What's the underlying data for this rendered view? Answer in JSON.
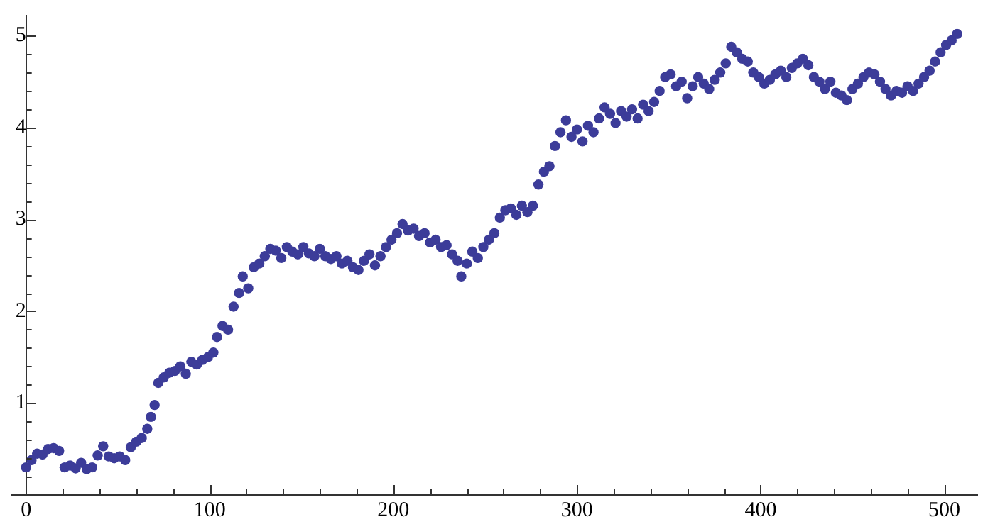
{
  "chart_data": {
    "type": "scatter",
    "marker": "circle",
    "grid": false,
    "legend": false,
    "xlim": [
      -8,
      518
    ],
    "ylim": [
      0,
      5.22
    ],
    "xticks": [
      0,
      {
        "value": 20,
        "label": null
      },
      {
        "value": 40,
        "label": null
      },
      {
        "value": 60,
        "label": null
      },
      {
        "value": 80,
        "label": null
      },
      100,
      {
        "value": 120,
        "label": null
      },
      {
        "value": 140,
        "label": null
      },
      {
        "value": 160,
        "label": null
      },
      {
        "value": 180,
        "label": null
      },
      200,
      {
        "value": 220,
        "label": null
      },
      {
        "value": 240,
        "label": null
      },
      {
        "value": 260,
        "label": null
      },
      {
        "value": 280,
        "label": null
      },
      300,
      {
        "value": 320,
        "label": null
      },
      {
        "value": 340,
        "label": null
      },
      {
        "value": 360,
        "label": null
      },
      {
        "value": 380,
        "label": null
      },
      400,
      {
        "value": 420,
        "label": null
      },
      {
        "value": 440,
        "label": null
      },
      {
        "value": 460,
        "label": null
      },
      {
        "value": 480,
        "label": null
      },
      500
    ],
    "yticks": [
      {
        "value": 0.2,
        "label": null
      },
      {
        "value": 0.4,
        "label": null
      },
      {
        "value": 0.6,
        "label": null
      },
      {
        "value": 0.8,
        "label": null
      },
      1,
      {
        "value": 1.2,
        "label": null
      },
      {
        "value": 1.4,
        "label": null
      },
      {
        "value": 1.6,
        "label": null
      },
      {
        "value": 1.8,
        "label": null
      },
      2,
      {
        "value": 2.2,
        "label": null
      },
      {
        "value": 2.4,
        "label": null
      },
      {
        "value": 2.6,
        "label": null
      },
      {
        "value": 2.8,
        "label": null
      },
      3,
      {
        "value": 3.2,
        "label": null
      },
      {
        "value": 3.4,
        "label": null
      },
      {
        "value": 3.6,
        "label": null
      },
      {
        "value": 3.8,
        "label": null
      },
      4,
      {
        "value": 4.2,
        "label": null
      },
      {
        "value": 4.4,
        "label": null
      },
      {
        "value": 4.6,
        "label": null
      },
      {
        "value": 4.8,
        "label": null
      },
      5
    ],
    "x": [
      0,
      3,
      6,
      9,
      12,
      15,
      18,
      21,
      24,
      27,
      30,
      33,
      36,
      39,
      42,
      45,
      48,
      51,
      54,
      57,
      60,
      63,
      66,
      68,
      70,
      72,
      75,
      78,
      81,
      84,
      87,
      90,
      93,
      96,
      99,
      102,
      104,
      107,
      110,
      113,
      116,
      118,
      121,
      124,
      127,
      130,
      133,
      136,
      139,
      142,
      145,
      148,
      151,
      154,
      157,
      160,
      163,
      166,
      169,
      172,
      175,
      178,
      181,
      184,
      187,
      190,
      193,
      196,
      199,
      202,
      205,
      208,
      211,
      214,
      217,
      220,
      223,
      226,
      229,
      232,
      235,
      237,
      240,
      243,
      246,
      249,
      252,
      255,
      258,
      261,
      264,
      267,
      270,
      273,
      276,
      279,
      282,
      285,
      288,
      291,
      294,
      297,
      300,
      303,
      306,
      309,
      312,
      315,
      318,
      321,
      324,
      327,
      330,
      333,
      336,
      339,
      342,
      345,
      348,
      351,
      354,
      357,
      360,
      363,
      366,
      369,
      372,
      375,
      378,
      381,
      384,
      387,
      390,
      393,
      396,
      399,
      402,
      405,
      408,
      411,
      414,
      417,
      420,
      423,
      426,
      429,
      432,
      435,
      438,
      441,
      444,
      447,
      450,
      453,
      456,
      459,
      462,
      465,
      468,
      471,
      474,
      477,
      480,
      483,
      486,
      489,
      492,
      495,
      498,
      501,
      504,
      507
    ],
    "series": [
      {
        "color": "#3c3c99",
        "values": [
          0.3,
          0.38,
          0.45,
          0.44,
          0.5,
          0.51,
          0.48,
          0.3,
          0.32,
          0.29,
          0.35,
          0.28,
          0.3,
          0.43,
          0.53,
          0.42,
          0.4,
          0.42,
          0.38,
          0.52,
          0.58,
          0.62,
          0.72,
          0.85,
          0.98,
          1.22,
          1.28,
          1.33,
          1.35,
          1.4,
          1.32,
          1.45,
          1.42,
          1.47,
          1.5,
          1.55,
          1.72,
          1.84,
          1.8,
          2.05,
          2.2,
          2.38,
          2.25,
          2.48,
          2.52,
          2.6,
          2.68,
          2.66,
          2.58,
          2.7,
          2.65,
          2.62,
          2.7,
          2.63,
          2.6,
          2.68,
          2.6,
          2.57,
          2.6,
          2.52,
          2.55,
          2.48,
          2.45,
          2.55,
          2.62,
          2.5,
          2.6,
          2.7,
          2.78,
          2.85,
          2.95,
          2.88,
          2.9,
          2.82,
          2.85,
          2.75,
          2.78,
          2.7,
          2.72,
          2.62,
          2.55,
          2.38,
          2.52,
          2.65,
          2.58,
          2.7,
          2.78,
          2.85,
          3.02,
          3.1,
          3.12,
          3.05,
          3.15,
          3.08,
          3.15,
          3.38,
          3.52,
          3.58,
          3.8,
          3.95,
          4.08,
          3.9,
          3.98,
          3.85,
          4.02,
          3.95,
          4.1,
          4.22,
          4.15,
          4.05,
          4.18,
          4.12,
          4.2,
          4.1,
          4.25,
          4.18,
          4.28,
          4.4,
          4.55,
          4.58,
          4.45,
          4.5,
          4.32,
          4.45,
          4.55,
          4.48,
          4.42,
          4.52,
          4.6,
          4.7,
          4.88,
          4.82,
          4.75,
          4.72,
          4.6,
          4.55,
          4.48,
          4.52,
          4.58,
          4.62,
          4.55,
          4.65,
          4.7,
          4.75,
          4.68,
          4.55,
          4.5,
          4.42,
          4.5,
          4.38,
          4.35,
          4.3,
          4.42,
          4.48,
          4.55,
          4.6,
          4.58,
          4.5,
          4.42,
          4.35,
          4.4,
          4.38,
          4.45,
          4.4,
          4.48,
          4.55,
          4.62,
          4.72,
          4.82,
          4.9,
          4.95,
          5.02
        ]
      }
    ]
  }
}
